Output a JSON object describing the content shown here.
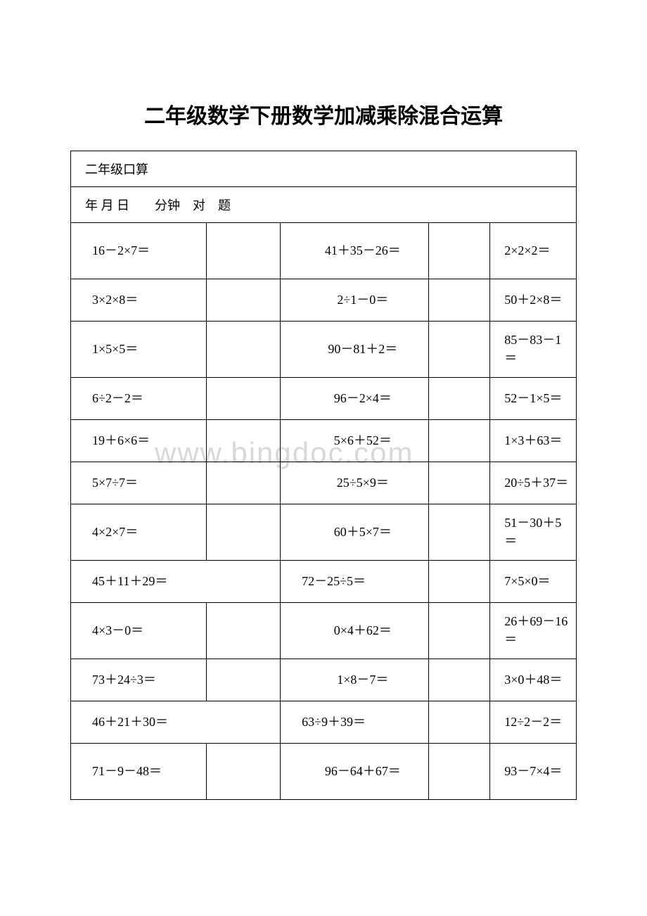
{
  "title": "二年级数学下册数学加减乘除混合运算",
  "header1": "二年级口算",
  "header2": "年  月  日　　分钟　对　题",
  "watermark": "www.bingdoc.com",
  "rows": [
    {
      "c1": "16－2×7＝",
      "c4": "41＋35－26＝",
      "c6": "2×2×2＝",
      "tall": true
    },
    {
      "c1": "3×2×8＝",
      "c4": "2÷1－0＝",
      "c6": "50＋2×8＝"
    },
    {
      "c1": "1×5×5＝",
      "c4": "90－81＋2＝",
      "c6": "85－83－1＝",
      "tall": true
    },
    {
      "c1": "6÷2－2＝",
      "c4": "96－2×4＝",
      "c6": "52－1×5＝"
    },
    {
      "c1": "19＋6×6＝",
      "c4": "5×6＋52＝",
      "c6": "1×3＋63＝"
    },
    {
      "c1": "5×7÷7＝",
      "c4": "25÷5×9＝",
      "c6": "20÷5＋37＝"
    },
    {
      "c1": "4×2×7＝",
      "c4": "60＋5×7＝",
      "c6": "51－30＋5＝",
      "tall": true
    },
    {
      "c1": "45＋11＋29＝",
      "c34": "72－25÷5＝",
      "c6": "7×5×0＝",
      "merged": true
    },
    {
      "c1": "4×3－0＝",
      "c4": "0×4＋62＝",
      "c6": "26＋69－16＝",
      "tall": true
    },
    {
      "c1": "73＋24÷3＝",
      "c4": "1×8－7＝",
      "c6": "3×0＋48＝"
    },
    {
      "c1": "46＋21＋30＝",
      "c34": "63÷9＋39＝",
      "c6": "12÷2－2＝",
      "merged": true
    },
    {
      "c1": "71－9－48＝",
      "c4": "96－64＋67＝",
      "c6": "93－7×4＝",
      "tall": true
    }
  ],
  "colors": {
    "text": "#000000",
    "background": "#ffffff",
    "border": "#000000",
    "watermark": "#d8d8d8"
  },
  "fontsize": {
    "title": 30,
    "cell": 18
  }
}
